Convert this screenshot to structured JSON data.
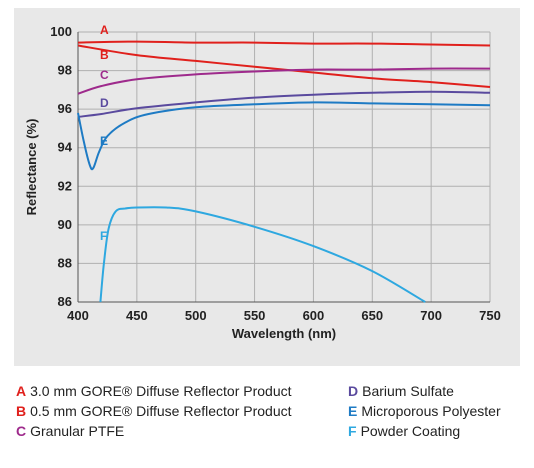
{
  "chart_data": {
    "type": "line",
    "xlabel": "Wavelength (nm)",
    "ylabel": "Reflectance (%)",
    "xlim": [
      400,
      750
    ],
    "ylim": [
      86,
      100
    ],
    "xticks": [
      400,
      450,
      500,
      550,
      600,
      650,
      700,
      750
    ],
    "yticks": [
      86,
      88,
      90,
      92,
      94,
      96,
      98,
      100
    ],
    "grid": true,
    "legend_position": "bottom",
    "series": [
      {
        "tag": "A",
        "name": "3.0 mm GORE® Diffuse Reflector Product",
        "color": "#e0201c",
        "points": [
          [
            400,
            99.45
          ],
          [
            450,
            99.5
          ],
          [
            500,
            99.45
          ],
          [
            550,
            99.45
          ],
          [
            600,
            99.4
          ],
          [
            650,
            99.4
          ],
          [
            700,
            99.35
          ],
          [
            750,
            99.3
          ]
        ]
      },
      {
        "tag": "B",
        "name": "0.5 mm GORE® Diffuse Reflector Product",
        "color": "#e0201c",
        "points": [
          [
            400,
            99.3
          ],
          [
            450,
            98.8
          ],
          [
            500,
            98.5
          ],
          [
            550,
            98.2
          ],
          [
            600,
            97.9
          ],
          [
            650,
            97.6
          ],
          [
            700,
            97.4
          ],
          [
            750,
            97.15
          ]
        ]
      },
      {
        "tag": "C",
        "name": "Granular PTFE",
        "color": "#9e2a8c",
        "points": [
          [
            400,
            96.8
          ],
          [
            420,
            97.2
          ],
          [
            450,
            97.55
          ],
          [
            500,
            97.8
          ],
          [
            550,
            97.95
          ],
          [
            600,
            98.05
          ],
          [
            650,
            98.05
          ],
          [
            700,
            98.1
          ],
          [
            750,
            98.1
          ]
        ]
      },
      {
        "tag": "D",
        "name": "Barium Sulfate",
        "color": "#5a4a9e",
        "points": [
          [
            400,
            95.6
          ],
          [
            420,
            95.75
          ],
          [
            450,
            96.05
          ],
          [
            500,
            96.35
          ],
          [
            550,
            96.6
          ],
          [
            600,
            96.75
          ],
          [
            650,
            96.85
          ],
          [
            700,
            96.9
          ],
          [
            750,
            96.85
          ]
        ]
      },
      {
        "tag": "E",
        "name": "Microporous Polyester",
        "color": "#1e7bc4",
        "points": [
          [
            400,
            95.8
          ],
          [
            405,
            94.3
          ],
          [
            410,
            93.1
          ],
          [
            413,
            92.95
          ],
          [
            418,
            93.8
          ],
          [
            425,
            94.6
          ],
          [
            440,
            95.3
          ],
          [
            460,
            95.75
          ],
          [
            500,
            96.1
          ],
          [
            550,
            96.25
          ],
          [
            600,
            96.35
          ],
          [
            650,
            96.3
          ],
          [
            700,
            96.25
          ],
          [
            750,
            96.2
          ]
        ]
      },
      {
        "tag": "F",
        "name": "Powder Coating",
        "color": "#2ea8e0",
        "points": [
          [
            419,
            86.0
          ],
          [
            422,
            88.0
          ],
          [
            426,
            89.8
          ],
          [
            432,
            90.7
          ],
          [
            440,
            90.85
          ],
          [
            450,
            90.9
          ],
          [
            475,
            90.9
          ],
          [
            500,
            90.7
          ],
          [
            550,
            89.9
          ],
          [
            600,
            88.9
          ],
          [
            650,
            87.6
          ],
          [
            695,
            86.0
          ]
        ]
      }
    ],
    "tag_positions_note": "tag letters drawn near curve starts"
  }
}
